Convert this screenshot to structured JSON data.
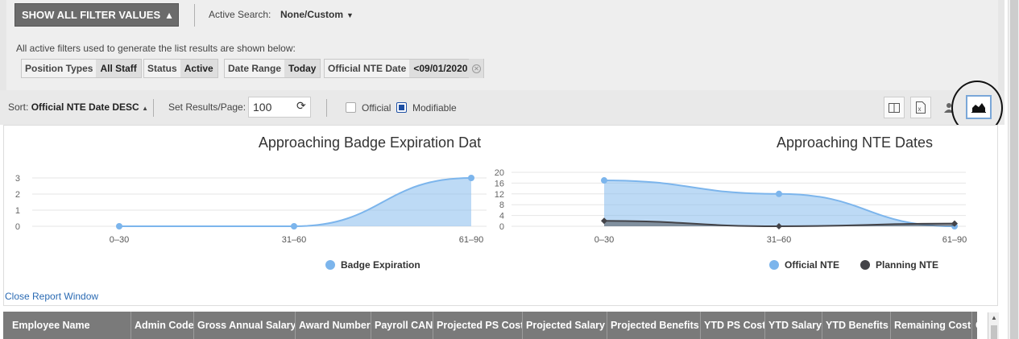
{
  "filters": {
    "show_button": "SHOW ALL FILTER VALUES",
    "active_search_label": "Active Search:",
    "active_search_value": "None/Custom",
    "note": "All active filters used to generate the list results are shown below:",
    "chips": [
      {
        "key": "Position Types",
        "value": "All Staff"
      },
      {
        "key": "Status",
        "value": "Active"
      },
      {
        "key": "Date Range",
        "value": "Today"
      },
      {
        "key": "Official NTE Date",
        "value": "<09/01/2020"
      }
    ]
  },
  "toolbar": {
    "sort_label": "Sort:",
    "sort_value": "Official NTE Date DESC",
    "set_results_label": "Set Results/Page:",
    "results_value": "100",
    "official_label": "Official",
    "modifiable_label": "Modifiable",
    "icons": [
      "columns-icon",
      "excel-export-icon",
      "user-group-icon",
      "area-chart-icon"
    ]
  },
  "chart_data": [
    {
      "type": "area",
      "title": "Approaching Badge Expiration Dat",
      "categories": [
        "0–30",
        "31–60",
        "61–90"
      ],
      "yticks": [
        "0",
        "1",
        "2",
        "3"
      ],
      "ylim": [
        0,
        3.5
      ],
      "series": [
        {
          "name": "Badge Expiration",
          "values": [
            0,
            0,
            3
          ],
          "color": "#7cb5ec"
        }
      ],
      "legend": "bottom-center"
    },
    {
      "type": "area",
      "title": "Approaching NTE Dates",
      "categories": [
        "0–30",
        "31–60",
        "61–90"
      ],
      "yticks": [
        "0",
        "4",
        "8",
        "12",
        "16",
        "20"
      ],
      "ylim": [
        0,
        20
      ],
      "series": [
        {
          "name": "Official NTE",
          "values": [
            17,
            12,
            0
          ],
          "color": "#7cb5ec"
        },
        {
          "name": "Planning NTE",
          "values": [
            2,
            0,
            1
          ],
          "color": "#434348"
        }
      ],
      "legend": "bottom-center"
    }
  ],
  "close_link": "Close Report Window",
  "table": {
    "headers": [
      "Employee Name",
      "Admin Code",
      "Gross Annual Salary",
      "Award Number",
      "Payroll CAN",
      "Projected PS Cost",
      "Projected Salary",
      "Projected Benefits",
      "YTD PS Cost",
      "YTD Salary",
      "YTD Benefits",
      "Remaining Cost",
      "Cu"
    ]
  },
  "colors": {
    "accent": "#1d4fa3",
    "header_bg": "#7a7a7a",
    "series_blue": "#7cb5ec",
    "series_dark": "#434348"
  }
}
